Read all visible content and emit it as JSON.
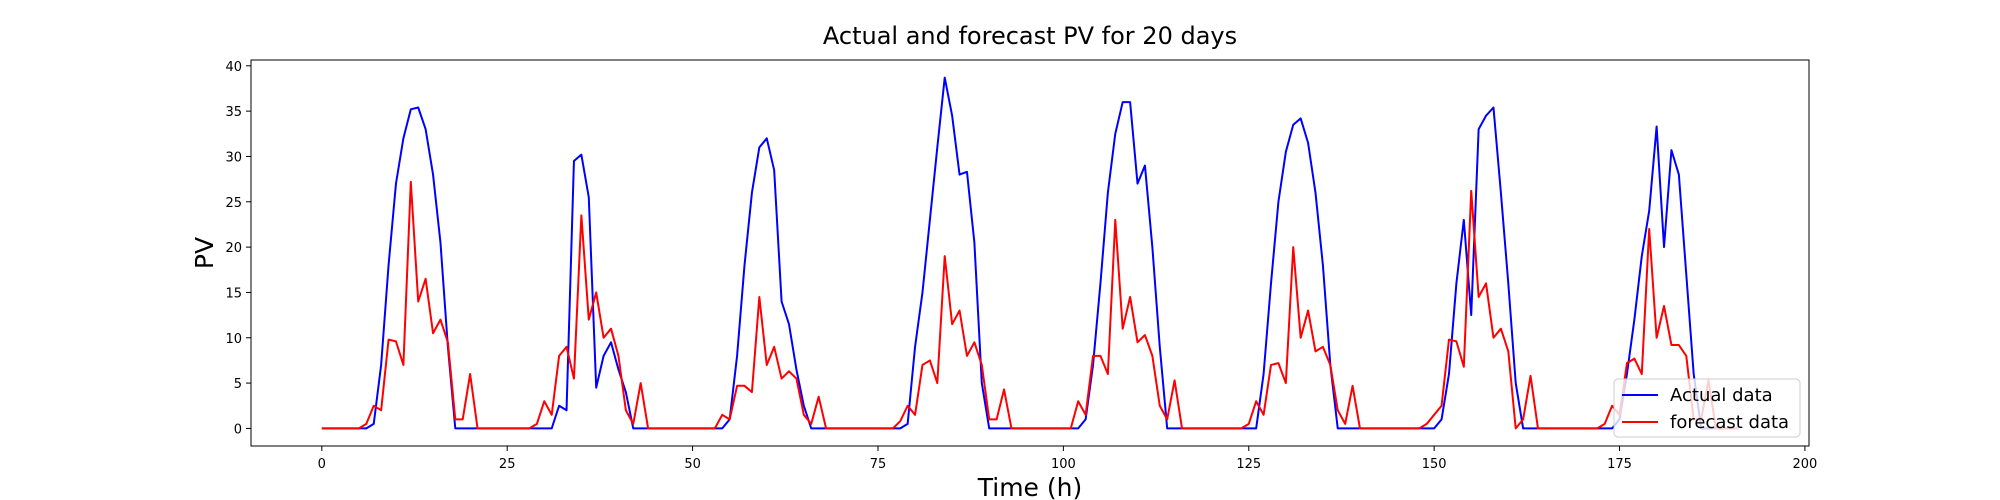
{
  "chart_data": {
    "type": "line",
    "title": "Actual and forecast PV for 20 days",
    "xlabel": "Time (h)",
    "ylabel": "PV",
    "xlim": [
      -9.55,
      200.55
    ],
    "ylim": [
      -1.94,
      40.64
    ],
    "xticks": [
      0,
      25,
      50,
      75,
      100,
      125,
      150,
      175,
      200
    ],
    "yticks": [
      0,
      5,
      10,
      15,
      20,
      25,
      30,
      35,
      40
    ],
    "grid": false,
    "legend": "lower right",
    "x": [
      0,
      1,
      2,
      3,
      4,
      5,
      6,
      7,
      8,
      9,
      10,
      11,
      12,
      13,
      14,
      15,
      16,
      17,
      18,
      19,
      20,
      21,
      22,
      23,
      24,
      25,
      26,
      27,
      28,
      29,
      30,
      31,
      32,
      33,
      34,
      35,
      36,
      37,
      38,
      39,
      40,
      41,
      42,
      43,
      44,
      45,
      46,
      47,
      48,
      49,
      50,
      51,
      52,
      53,
      54,
      55,
      56,
      57,
      58,
      59,
      60,
      61,
      62,
      63,
      64,
      65,
      66,
      67,
      68,
      69,
      70,
      71,
      72,
      73,
      74,
      75,
      76,
      77,
      78,
      79,
      80,
      81,
      82,
      83,
      84,
      85,
      86,
      87,
      88,
      89,
      90,
      91,
      92,
      93,
      94,
      95,
      96,
      97,
      98,
      99,
      100,
      101,
      102,
      103,
      104,
      105,
      106,
      107,
      108,
      109,
      110,
      111,
      112,
      113,
      114,
      115,
      116,
      117,
      118,
      119,
      120,
      121,
      122,
      123,
      124,
      125,
      126,
      127,
      128,
      129,
      130,
      131,
      132,
      133,
      134,
      135,
      136,
      137,
      138,
      139,
      140,
      141,
      142,
      143,
      144,
      145,
      146,
      147,
      148,
      149,
      150,
      151,
      152,
      153,
      154,
      155,
      156,
      157,
      158,
      159,
      160,
      161,
      162,
      163,
      164,
      165,
      166,
      167,
      168,
      169,
      170,
      171,
      172,
      173,
      174,
      175,
      176,
      177,
      178,
      179,
      180,
      181,
      182,
      183,
      184,
      185,
      186,
      187,
      188,
      189,
      190,
      191
    ],
    "series": [
      {
        "name": "Actual data",
        "color": "#0000ff",
        "values": [
          0,
          0,
          0,
          0,
          0,
          0,
          0,
          0.5,
          7,
          18,
          27,
          32,
          35.2,
          35.4,
          33,
          28,
          20.5,
          9,
          0,
          0,
          0,
          0,
          0,
          0,
          0,
          0,
          0,
          0,
          0,
          0,
          0,
          0,
          2.5,
          2,
          29.5,
          30.2,
          25.5,
          4.5,
          8,
          9.5,
          6.5,
          4,
          0,
          0,
          0,
          0,
          0,
          0,
          0,
          0,
          0,
          0,
          0,
          0,
          0,
          1,
          8,
          18,
          26,
          31,
          32,
          28.5,
          14,
          11.5,
          6.5,
          2.5,
          0,
          0,
          0,
          0,
          0,
          0,
          0,
          0,
          0,
          0,
          0,
          0,
          0,
          0.5,
          9,
          15,
          23,
          31,
          38.7,
          34.5,
          28,
          28.3,
          20.5,
          5,
          0,
          0,
          0,
          0,
          0,
          0,
          0,
          0,
          0,
          0,
          0,
          0,
          0,
          1,
          7,
          16,
          26,
          32.5,
          36,
          36,
          27,
          29,
          20,
          9,
          0,
          0,
          0,
          0,
          0,
          0,
          0,
          0,
          0,
          0,
          0,
          0,
          0,
          6,
          16,
          25,
          30.5,
          33.5,
          34.2,
          31.5,
          26,
          18,
          7,
          0,
          0,
          0,
          0,
          0,
          0,
          0,
          0,
          0,
          0,
          0,
          0,
          0,
          0,
          1,
          6,
          16,
          23,
          12.5,
          33,
          34.5,
          35.4,
          26,
          16,
          5,
          0,
          0,
          0,
          0,
          0,
          0,
          0,
          0,
          0,
          0,
          0,
          0,
          0,
          1,
          6,
          12,
          19,
          24,
          33.3,
          20,
          30.7,
          28,
          17,
          6,
          0,
          0,
          0,
          0,
          0,
          0
        ]
      },
      {
        "name": "forecast data",
        "color": "#ff0000",
        "values": [
          0,
          0,
          0,
          0,
          0,
          0,
          0.5,
          2.5,
          2,
          9.8,
          9.6,
          7,
          27.2,
          14,
          16.5,
          10.5,
          12,
          9.5,
          1,
          1,
          6,
          0,
          0,
          0,
          0,
          0,
          0,
          0,
          0,
          0.5,
          3,
          1.5,
          8,
          9,
          5.5,
          23.5,
          12,
          15,
          10,
          11,
          8,
          2,
          0.5,
          5,
          0,
          0,
          0,
          0,
          0,
          0,
          0,
          0,
          0,
          0,
          1.5,
          1,
          4.7,
          4.7,
          4,
          14.5,
          7,
          9,
          5.5,
          6.3,
          5.5,
          1.5,
          0.5,
          3.5,
          0,
          0,
          0,
          0,
          0,
          0,
          0,
          0,
          0,
          0,
          0.8,
          2.5,
          1.5,
          7,
          7.5,
          5,
          19,
          11.5,
          13,
          8,
          9.5,
          7,
          1,
          1,
          4.3,
          0,
          0,
          0,
          0,
          0,
          0,
          0,
          0,
          0,
          3,
          1.5,
          8,
          8,
          6,
          23,
          11,
          14.5,
          9.5,
          10.3,
          8,
          2.5,
          1,
          5.3,
          0,
          0,
          0,
          0,
          0,
          0,
          0,
          0,
          0,
          0.5,
          3,
          1.5,
          7,
          7.2,
          5,
          20,
          10,
          13,
          8.5,
          9,
          7,
          2,
          0.5,
          4.7,
          0,
          0,
          0,
          0,
          0,
          0,
          0,
          0,
          0,
          0.5,
          1.5,
          2.5,
          9.8,
          9.6,
          6.8,
          26.2,
          14.5,
          16,
          10,
          11,
          8.5,
          0,
          1,
          5.8,
          0,
          0,
          0,
          0,
          0,
          0,
          0,
          0,
          0,
          0.5,
          2.5,
          1.5,
          7.2,
          7.7,
          6,
          22,
          10,
          13.5,
          9.2,
          9.2,
          8,
          1,
          1,
          5.3,
          0,
          0,
          0,
          0
        ]
      }
    ]
  }
}
